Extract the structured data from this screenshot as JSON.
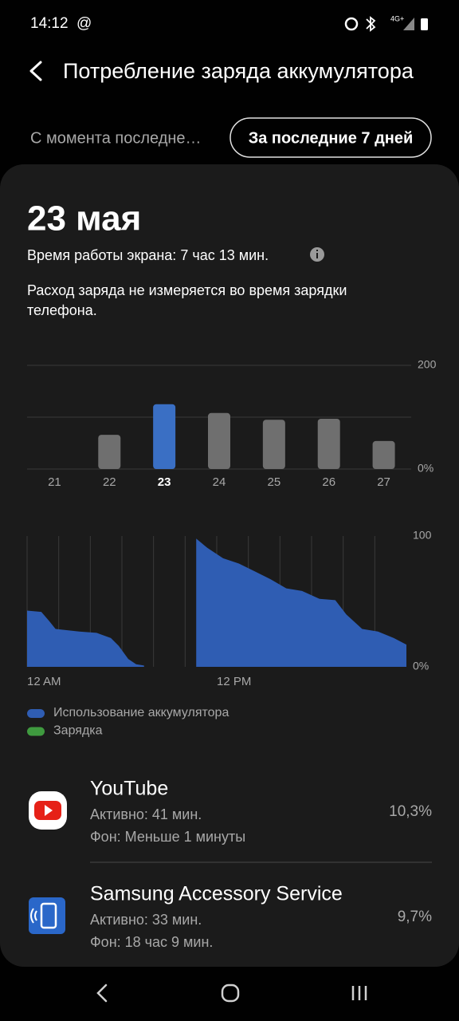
{
  "status_bar": {
    "time": "14:12",
    "notification": "@",
    "network": "4G+"
  },
  "header": {
    "title": "Потребление заряда аккумулятора"
  },
  "tabs": [
    "С момента последне…",
    "За последние 7 дней"
  ],
  "card": {
    "date": "23 мая",
    "screen_time": "Время работы экрана: 7 час 13 мин.",
    "note_lines": [
      "Расход заряда не измеряется во время зарядки",
      "телефона."
    ]
  },
  "chart_data": [
    {
      "type": "bar",
      "categories": [
        "21",
        "22",
        "23",
        "24",
        "25",
        "26",
        "27"
      ],
      "values": [
        0,
        66,
        125,
        108,
        95,
        97,
        54
      ],
      "colors": [
        "#6f6f6f",
        "#6f6f6f",
        "#3a6fc4",
        "#6f6f6f",
        "#6f6f6f",
        "#6f6f6f",
        "#6f6f6f"
      ],
      "selected": 2,
      "ylim": [
        0,
        200
      ],
      "yticks": [
        {
          "value": 0,
          "label": "0%"
        },
        200
      ],
      "grid_values": [
        100
      ],
      "grid": true
    },
    {
      "type": "area",
      "x": [
        0,
        0.9,
        1.4,
        1.8,
        3.3,
        4.4,
        5.3,
        5.8,
        6.4,
        6.9,
        7.4,
        9.0,
        10.7,
        11.4,
        12.4,
        13.4,
        14.4,
        15.4,
        16.4,
        17.4,
        18.5,
        19.5,
        20.2,
        21.2,
        22.2,
        23.2,
        24.0
      ],
      "series": [
        {
          "name": "Использование аккумулятора",
          "color": "#2f5db3",
          "values": [
            43,
            42,
            35,
            29,
            27,
            26,
            22,
            16,
            6,
            2,
            1,
            null,
            98,
            91,
            83,
            79,
            73,
            67,
            60,
            58,
            52,
            51,
            40,
            29,
            27,
            22,
            17
          ]
        },
        {
          "name": "Зарядка",
          "color": "#3f9a3f",
          "values": [
            null,
            null,
            null,
            null,
            null,
            null,
            null,
            null,
            null,
            null,
            null,
            null,
            null,
            null,
            null,
            null,
            null,
            null,
            null,
            null,
            null,
            null,
            null,
            null,
            null,
            null,
            null
          ]
        }
      ],
      "xlim": [
        0,
        24
      ],
      "xticks": [
        {
          "value": 0,
          "label": "12 AM"
        },
        {
          "value": 12,
          "label": "12 PM"
        }
      ],
      "x_grid": [
        2,
        4,
        6,
        8,
        10,
        14,
        16,
        18,
        20,
        22
      ],
      "ylim": [
        0,
        100
      ],
      "yticks": [
        {
          "value": 0,
          "label": "0%"
        },
        100
      ]
    }
  ],
  "apps": [
    {
      "name": "YouTube",
      "active": "Активно: 41 мин.",
      "background": "Фон: Меньше 1 минуты",
      "percent": "10,3%"
    },
    {
      "name": "Samsung Accessory Service",
      "active": "Активно: 33 мин.",
      "background": "Фон: 18 час 9 мин.",
      "percent": "9,7%"
    }
  ]
}
